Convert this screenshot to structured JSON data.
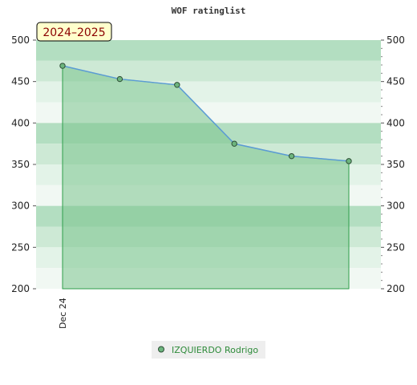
{
  "chart_data": {
    "type": "line",
    "title": "WOF ratinglist",
    "season_label": "2024–2025",
    "ylim": [
      200,
      500
    ],
    "y_ticks": [
      200,
      250,
      300,
      350,
      400,
      450,
      500
    ],
    "x_tick_labels": [
      "Dec 24"
    ],
    "series": [
      {
        "name": "IZQUIERDO Rodrigo",
        "values": [
          469,
          453,
          446,
          375,
          360,
          354
        ]
      }
    ],
    "legend_position": "bottom-center",
    "grid": false,
    "area_fill": true,
    "colors": {
      "line": "#5b9bd5",
      "area": "#7cc48e",
      "marker": "#6db57e",
      "band_dark": "#b3dec1",
      "band_mid": "#cde9d5",
      "band_light": "#e3f3e8",
      "band_pale": "#f1f8f3"
    }
  }
}
